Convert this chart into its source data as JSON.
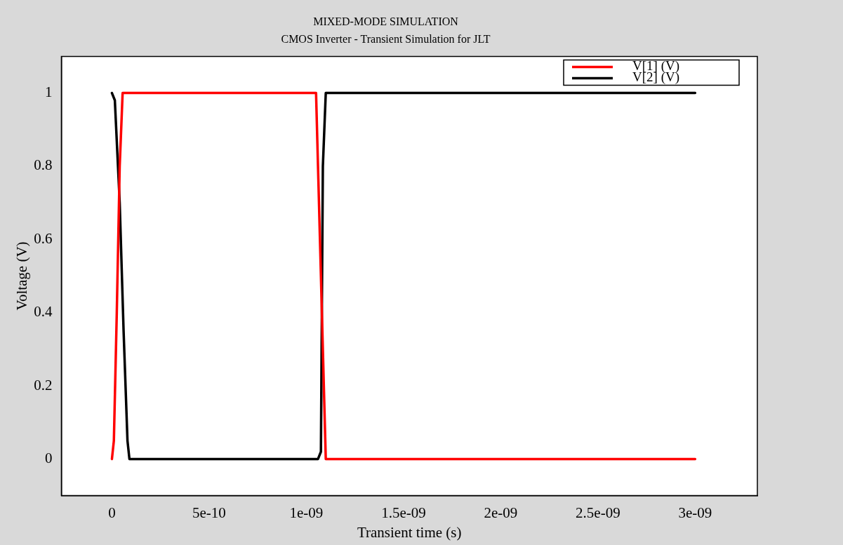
{
  "chart_data": {
    "type": "line",
    "title": "MIXED-MODE SIMULATION",
    "subtitle": "CMOS Inverter - Transient Simulation for JLT",
    "xlabel": "Transient time (s)",
    "ylabel": "Voltage (V)",
    "xlim": [
      -2.6e-10,
      3.32e-09
    ],
    "xticks": [
      {
        "value": 0,
        "label": "0"
      },
      {
        "value": 5e-10,
        "label": "5e-10"
      },
      {
        "value": 1e-09,
        "label": "1e-09"
      },
      {
        "value": 1.5e-09,
        "label": "1.5e-09"
      },
      {
        "value": 2e-09,
        "label": "2e-09"
      },
      {
        "value": 2.5e-09,
        "label": "2.5e-09"
      },
      {
        "value": 3e-09,
        "label": "3e-09"
      }
    ],
    "ylim": [
      -0.1,
      1.1
    ],
    "yticks": [
      0,
      0.2,
      0.4,
      0.6,
      0.8,
      1
    ],
    "grid": false,
    "legend": "top right",
    "marker": "none",
    "line_style": "solid",
    "series": [
      {
        "name": "V[1] (V)",
        "color": "#ff0000",
        "x": [
          0,
          1e-11,
          2.5e-11,
          4e-11,
          5.5e-11,
          1.05e-09,
          1.07e-09,
          1.09e-09,
          1.1e-09,
          3e-09
        ],
        "values": [
          0,
          0.05,
          0.4,
          0.8,
          1,
          1,
          0.6,
          0.2,
          0,
          0
        ]
      },
      {
        "name": "V[2] (V)",
        "color": "#000000",
        "x": [
          0,
          1.5e-11,
          4e-11,
          6e-11,
          8e-11,
          9e-11,
          1.06e-09,
          1.075e-09,
          1.085e-09,
          1.1e-09,
          3e-09
        ],
        "values": [
          1,
          0.98,
          0.7,
          0.35,
          0.05,
          0,
          0,
          0.02,
          0.8,
          1,
          1
        ]
      }
    ]
  }
}
